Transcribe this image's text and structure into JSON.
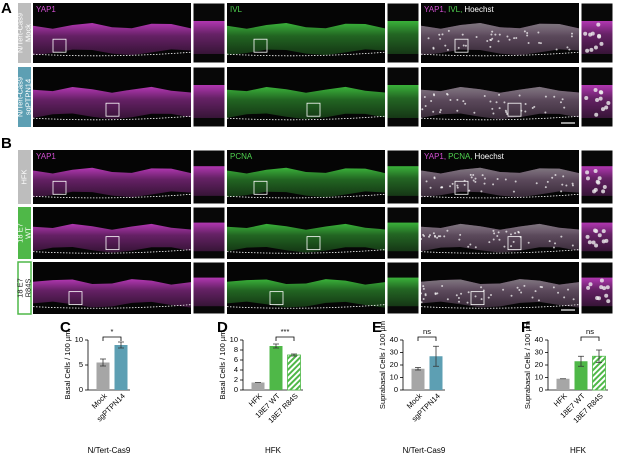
{
  "panels": [
    {
      "letter": "A",
      "columns": [
        {
          "parts": [
            {
              "text": "YAP1",
              "color": "#d24fd2"
            }
          ]
        },
        {
          "parts": [
            {
              "text": "IVL",
              "color": "#4fd24f"
            }
          ]
        },
        {
          "parts": [
            {
              "text": "YAP1,",
              "color": "#d24fd2"
            },
            {
              "text": "IVL,",
              "color": "#4fd24f"
            },
            {
              "text": "Hoechst",
              "color": "#ffffff"
            }
          ]
        }
      ],
      "rows": [
        {
          "lines": [
            "N/Tert-Cas9",
            "Mock"
          ],
          "color": "#bdbdbd"
        },
        {
          "lines": [
            "N/Tert-Cas9",
            "sgPTPN14"
          ],
          "color": "#5d9fb3"
        }
      ]
    },
    {
      "letter": "B",
      "columns": [
        {
          "parts": [
            {
              "text": "YAP1",
              "color": "#d24fd2"
            }
          ]
        },
        {
          "parts": [
            {
              "text": "PCNA",
              "color": "#4fd24f"
            }
          ]
        },
        {
          "parts": [
            {
              "text": "YAP1,",
              "color": "#d24fd2"
            },
            {
              "text": "PCNA,",
              "color": "#4fd24f"
            },
            {
              "text": "Hoechst",
              "color": "#ffffff"
            }
          ]
        }
      ],
      "rows": [
        {
          "lines": [
            "HFK"
          ],
          "color": "#bdbdbd"
        },
        {
          "lines": [
            "18 E7",
            "WT"
          ],
          "color": "#4fb848"
        },
        {
          "lines": [
            "18 E7",
            "R84S"
          ],
          "color": "#ffffff"
        }
      ]
    }
  ],
  "chart_data": [
    {
      "type": "bar",
      "panel": "C",
      "y_label": "Basal Cells / 100 µm",
      "x_label": "N/Tert-Cas9",
      "categories": [
        "Mock",
        "sgPTPN14"
      ],
      "values": [
        5.5,
        9
      ],
      "errors": [
        0.7,
        0.6
      ],
      "colors": [
        "#a6a6a6",
        "#5d9fb3"
      ],
      "hatch": [
        false,
        false
      ],
      "ylim": [
        0,
        10
      ],
      "yticks": [
        0,
        5,
        10
      ],
      "annotation": "*"
    },
    {
      "type": "bar",
      "panel": "D",
      "y_label": "Basal Cells / 100 µm",
      "x_label": "HFK",
      "categories": [
        "HFK",
        "18E7 WT",
        "18E7 R84S"
      ],
      "values": [
        1.5,
        8.8,
        7
      ],
      "errors": [
        0,
        0.4,
        0.2
      ],
      "colors": [
        "#a6a6a6",
        "#4fb848",
        "#4fb848"
      ],
      "hatch": [
        false,
        false,
        true
      ],
      "ylim": [
        0,
        10
      ],
      "yticks": [
        0,
        2,
        4,
        6,
        8,
        10
      ],
      "annotation": "***"
    },
    {
      "type": "bar",
      "panel": "E",
      "y_label": "Suprabasal Cells / 100 µm",
      "x_label": "N/Tert-Cas9",
      "categories": [
        "Mock",
        "sgPTPN14"
      ],
      "values": [
        17,
        27
      ],
      "errors": [
        1,
        8
      ],
      "colors": [
        "#a6a6a6",
        "#5d9fb3"
      ],
      "hatch": [
        false,
        false
      ],
      "ylim": [
        0,
        40
      ],
      "yticks": [
        0,
        10,
        20,
        30,
        40
      ],
      "annotation": "ns"
    },
    {
      "type": "bar",
      "panel": "F",
      "y_label": "Suprabasal Cells / 100 µm",
      "x_label": "HFK",
      "categories": [
        "HFK",
        "18E7 WT",
        "18E7 R84S"
      ],
      "values": [
        9,
        23,
        27
      ],
      "errors": [
        0,
        4,
        5
      ],
      "colors": [
        "#a6a6a6",
        "#4fb848",
        "#4fb848"
      ],
      "hatch": [
        false,
        false,
        true
      ],
      "ylim": [
        0,
        40
      ],
      "yticks": [
        0,
        10,
        20,
        30,
        40
      ],
      "annotation": "ns"
    }
  ]
}
